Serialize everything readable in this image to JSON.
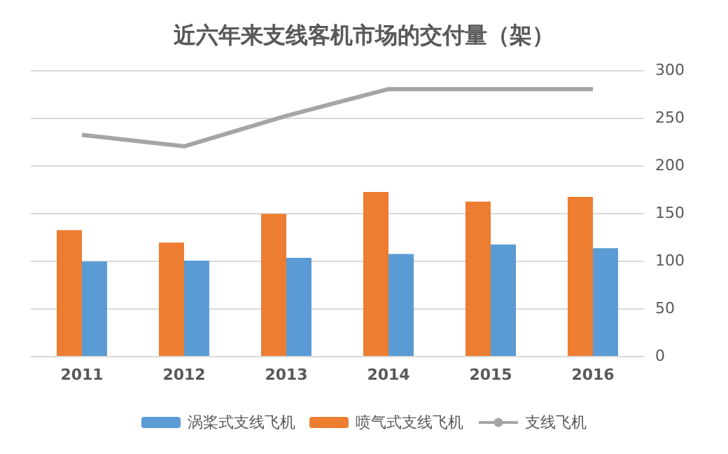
{
  "chart_data": {
    "type": "bar",
    "title": "近六年来支线客机市场的交付量（架）",
    "categories": [
      "2011",
      "2012",
      "2013",
      "2014",
      "2015",
      "2016"
    ],
    "series": [
      {
        "name": "涡桨式支线飞机",
        "color": "#5b9bd5",
        "values": [
          99,
          100,
          103,
          107,
          117,
          113
        ]
      },
      {
        "name": "喷气式支线飞机",
        "color": "#ed7d31",
        "values": [
          132,
          119,
          149,
          172,
          162,
          167
        ]
      },
      {
        "name": "支线飞机",
        "type": "line",
        "color": "#a5a5a5",
        "values": [
          232,
          220,
          252,
          280,
          280,
          280
        ]
      }
    ],
    "ylim": [
      0,
      300
    ],
    "yticks": [
      0,
      50,
      100,
      150,
      200,
      250,
      300
    ],
    "grid": "y",
    "legend": "bottom",
    "marker": "none"
  }
}
